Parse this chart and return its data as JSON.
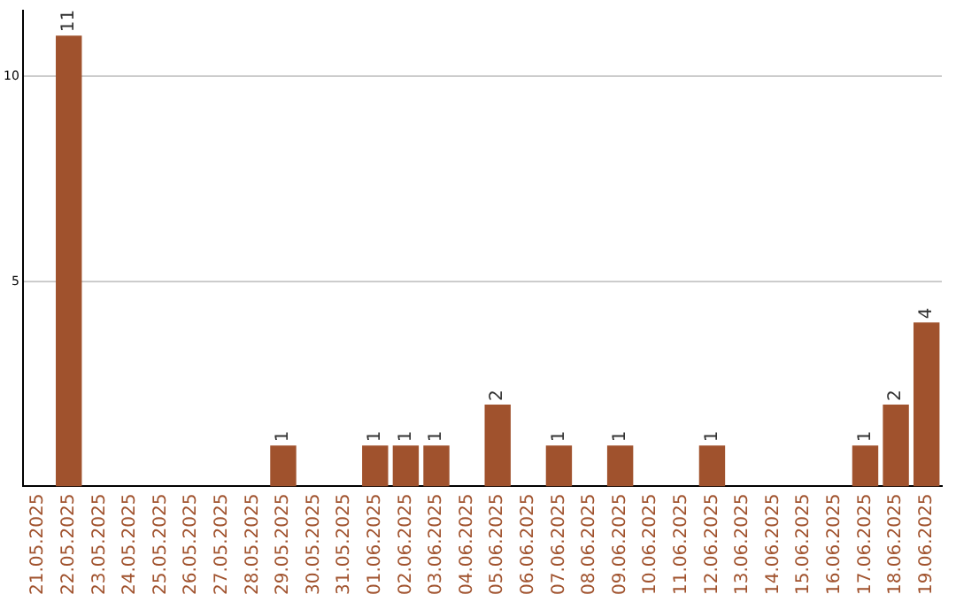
{
  "chart_data": {
    "type": "bar",
    "categories": [
      "21.05.2025",
      "22.05.2025",
      "23.05.2025",
      "24.05.2025",
      "25.05.2025",
      "26.05.2025",
      "27.05.2025",
      "28.05.2025",
      "29.05.2025",
      "30.05.2025",
      "31.05.2025",
      "01.06.2025",
      "02.06.2025",
      "03.06.2025",
      "04.06.2025",
      "05.06.2025",
      "06.06.2025",
      "07.06.2025",
      "08.06.2025",
      "09.06.2025",
      "10.06.2025",
      "11.06.2025",
      "12.06.2025",
      "13.06.2025",
      "14.06.2025",
      "15.06.2025",
      "16.06.2025",
      "17.06.2025",
      "18.06.2025",
      "19.06.2025"
    ],
    "values": [
      0,
      11,
      0,
      0,
      0,
      0,
      0,
      0,
      1,
      0,
      0,
      1,
      1,
      1,
      0,
      2,
      0,
      1,
      0,
      1,
      0,
      0,
      1,
      0,
      0,
      0,
      0,
      1,
      2,
      4
    ],
    "value_labels": [
      null,
      "11",
      null,
      null,
      null,
      null,
      null,
      null,
      "1",
      null,
      null,
      "1",
      "1",
      "1",
      null,
      "2",
      null,
      "1",
      null,
      "1",
      null,
      null,
      "1",
      null,
      null,
      null,
      null,
      "1",
      "2",
      "4"
    ],
    "color": "#a0522d",
    "ylim": [
      0,
      11.6
    ],
    "yticks": [
      5,
      10
    ],
    "grid": "y",
    "legend": false
  }
}
